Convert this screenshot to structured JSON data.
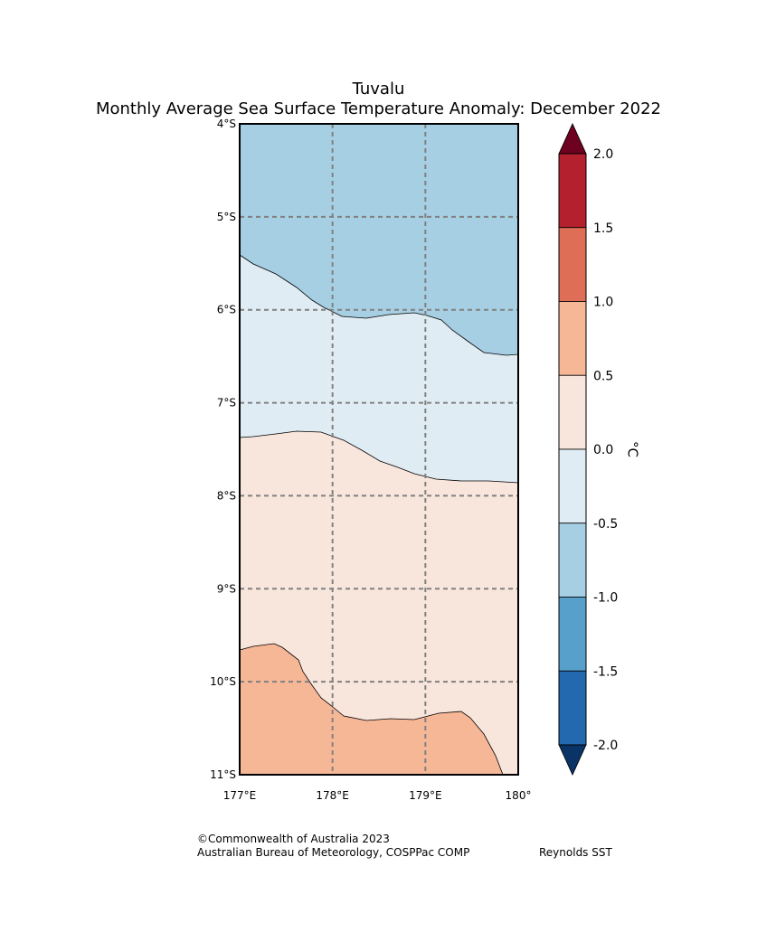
{
  "title": {
    "line1": "Tuvalu",
    "line2": "Monthly Average Sea Surface Temperature Anomaly: December 2022"
  },
  "map": {
    "lat_range": [
      -11,
      -4
    ],
    "lon_range": [
      177,
      180
    ],
    "lat_ticks": [
      "4°S",
      "5°S",
      "6°S",
      "7°S",
      "8°S",
      "9°S",
      "10°S",
      "11°S"
    ],
    "lon_ticks": [
      "177°E",
      "178°E",
      "179°E",
      "180°"
    ],
    "regions": [
      {
        "name": "anomaly-minus-1.0-to-minus-0.5",
        "color": "#a6cfe3"
      },
      {
        "name": "anomaly-minus-0.5-to-0.0",
        "color": "#e0ecf3"
      },
      {
        "name": "anomaly-0.0-to-0.5",
        "color": "#f8e6dc"
      },
      {
        "name": "anomaly-0.5-to-1.0",
        "color": "#f6b797"
      }
    ]
  },
  "colorbar": {
    "label": "°C",
    "min_extend_color": "#0a3366",
    "max_extend_color": "#6e0020",
    "bins": [
      {
        "label": "2.0",
        "color": "#b4202e"
      },
      {
        "label": "1.5",
        "color": "#de6e56"
      },
      {
        "label": "1.0",
        "color": "#f6b797"
      },
      {
        "label": "0.5",
        "color": "#f8e6dc"
      },
      {
        "label": "0.0",
        "color": "#e0ecf3"
      },
      {
        "label": "-0.5",
        "color": "#a6cfe3"
      },
      {
        "label": "-1.0",
        "color": "#57a0cb"
      },
      {
        "label": "-1.5",
        "color": "#2369b0"
      }
    ],
    "bottom_label": "-2.0"
  },
  "credits": {
    "copyright": "©Commonwealth of Australia 2023",
    "agency": "Australian Bureau of Meteorology, COSPPac COMP",
    "source": "Reynolds SST"
  }
}
